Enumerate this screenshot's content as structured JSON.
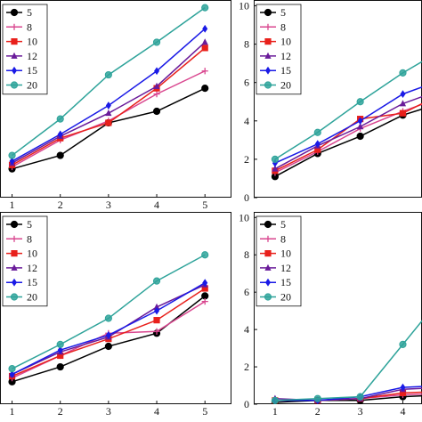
{
  "chart_data": [
    {
      "type": "line",
      "panel": "top-left",
      "x": [
        1,
        2,
        3,
        4,
        5
      ],
      "ylim": [
        0,
        10.3
      ],
      "xticks": [
        "1",
        "2",
        "3",
        "4",
        "5"
      ],
      "yticks": [],
      "legend": "top-left",
      "series": [
        {
          "name": "5",
          "values": [
            1.5,
            2.2,
            3.9,
            4.5,
            5.7
          ]
        },
        {
          "name": "8",
          "values": [
            1.6,
            3.0,
            4.0,
            5.4,
            6.6
          ]
        },
        {
          "name": "10",
          "values": [
            1.7,
            3.1,
            3.9,
            5.7,
            7.8
          ]
        },
        {
          "name": "12",
          "values": [
            1.8,
            3.2,
            4.4,
            5.8,
            8.1
          ]
        },
        {
          "name": "15",
          "values": [
            1.9,
            3.3,
            4.8,
            6.6,
            8.8
          ]
        },
        {
          "name": "20",
          "values": [
            2.2,
            4.1,
            6.4,
            8.1,
            9.9
          ]
        }
      ]
    },
    {
      "type": "line",
      "panel": "top-right",
      "x": [
        1,
        2,
        3,
        4,
        5
      ],
      "ylim": [
        0,
        10.3
      ],
      "xticks": [],
      "yticks": [
        "0",
        "2",
        "4",
        "6",
        "8",
        "10"
      ],
      "legend": "top-left",
      "series": [
        {
          "name": "5",
          "values": [
            1.1,
            2.3,
            3.2,
            4.3,
            5.0
          ]
        },
        {
          "name": "8",
          "values": [
            1.3,
            2.4,
            3.6,
            4.5,
            5.3
          ]
        },
        {
          "name": "10",
          "values": [
            1.4,
            2.5,
            4.1,
            4.4,
            5.5
          ]
        },
        {
          "name": "12",
          "values": [
            1.5,
            2.7,
            3.7,
            4.9,
            5.7
          ]
        },
        {
          "name": "15",
          "values": [
            1.8,
            2.8,
            4.0,
            5.4,
            6.2
          ]
        },
        {
          "name": "20",
          "values": [
            2.0,
            3.4,
            5.0,
            6.5,
            7.8
          ]
        }
      ]
    },
    {
      "type": "line",
      "panel": "bottom-left",
      "x": [
        1,
        2,
        3,
        4,
        5
      ],
      "ylim": [
        0,
        10.3
      ],
      "xticks": [
        "1",
        "2",
        "3",
        "4",
        "5"
      ],
      "yticks": [],
      "legend": "top-left",
      "series": [
        {
          "name": "5",
          "values": [
            1.2,
            2.0,
            3.1,
            3.8,
            5.8
          ]
        },
        {
          "name": "8",
          "values": [
            1.4,
            2.6,
            3.8,
            3.9,
            5.5
          ]
        },
        {
          "name": "10",
          "values": [
            1.5,
            2.6,
            3.5,
            4.5,
            6.2
          ]
        },
        {
          "name": "12",
          "values": [
            1.6,
            2.8,
            3.6,
            5.2,
            6.4
          ]
        },
        {
          "name": "15",
          "values": [
            1.6,
            2.9,
            3.7,
            5.0,
            6.5
          ]
        },
        {
          "name": "20",
          "values": [
            1.9,
            3.2,
            4.6,
            6.6,
            8.0
          ]
        }
      ]
    },
    {
      "type": "line",
      "panel": "bottom-right",
      "x": [
        1,
        2,
        3,
        4,
        5
      ],
      "ylim": [
        0,
        10.3
      ],
      "xticks": [
        "1",
        "2",
        "3",
        "4"
      ],
      "yticks": [
        "0",
        "2",
        "4",
        "6",
        "8",
        "10"
      ],
      "legend": "top-left",
      "series": [
        {
          "name": "5",
          "values": [
            0.1,
            0.2,
            0.2,
            0.4,
            0.5
          ]
        },
        {
          "name": "8",
          "values": [
            0.2,
            0.2,
            0.3,
            0.5,
            0.6
          ]
        },
        {
          "name": "10",
          "values": [
            0.2,
            0.2,
            0.3,
            0.6,
            0.7
          ]
        },
        {
          "name": "12",
          "values": [
            0.3,
            0.2,
            0.3,
            0.8,
            0.9
          ]
        },
        {
          "name": "15",
          "values": [
            0.2,
            0.2,
            0.4,
            0.9,
            1.0
          ]
        },
        {
          "name": "20",
          "values": [
            0.2,
            0.3,
            0.4,
            3.2,
            6.0
          ]
        }
      ]
    }
  ],
  "series_styles": [
    {
      "name": "5",
      "color": "#000000",
      "marker": "circle"
    },
    {
      "name": "8",
      "color": "#d9468f",
      "marker": "plus"
    },
    {
      "name": "10",
      "color": "#e8201b",
      "marker": "square"
    },
    {
      "name": "12",
      "color": "#6a1b9a",
      "marker": "triangle"
    },
    {
      "name": "15",
      "color": "#1a1ae6",
      "marker": "diamond"
    },
    {
      "name": "20",
      "color": "#2ea39a",
      "marker": "circle-open"
    }
  ]
}
